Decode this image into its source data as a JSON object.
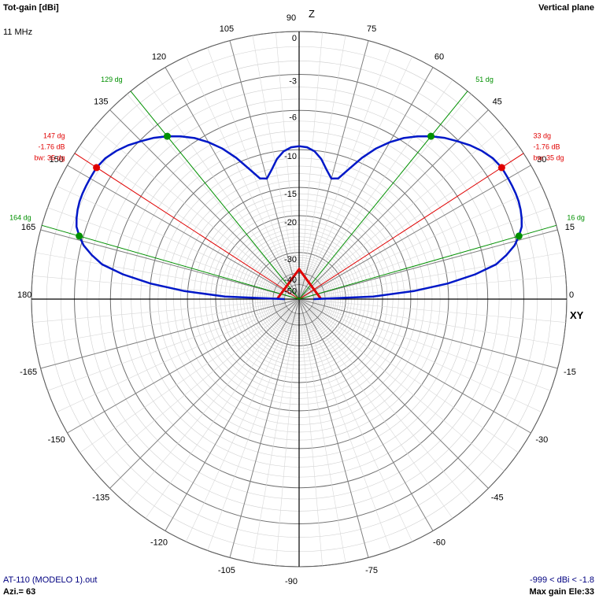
{
  "header": {
    "title": "Tot-gain [dBi]",
    "frequency": "11 MHz",
    "plane": "Vertical plane"
  },
  "footer": {
    "filename": "AT-110 (MODELO 1).out",
    "azimuth": "Azi.= 63",
    "range": "-999 < dBi < -1.8",
    "max_gain": "Max gain Ele:33"
  },
  "axes": {
    "z_label": "Z",
    "xy_label": "XY"
  },
  "colors": {
    "pattern": "#0018c8",
    "beamwidth": "#e00000",
    "takeoff": "#009000",
    "grid": "#808080",
    "antenna": "#e00000"
  },
  "chart_data": {
    "type": "polar",
    "angle_ticks": [
      "0",
      "15",
      "30",
      "45",
      "60",
      "75",
      "90",
      "105",
      "120",
      "135",
      "150",
      "165",
      "180",
      "-165",
      "-150",
      "-135",
      "-120",
      "-105",
      "-90",
      "-75",
      "-60",
      "-45",
      "-30",
      "-15"
    ],
    "angle_tick_values": [
      0,
      15,
      30,
      45,
      60,
      75,
      90,
      105,
      120,
      135,
      150,
      165,
      180,
      -165,
      -150,
      -135,
      -120,
      -105,
      -90,
      -75,
      -60,
      -45,
      -30,
      -15
    ],
    "radial_ticks": [
      "0",
      "-3",
      "-6",
      "-10",
      "-15",
      "-20",
      "-30",
      "-40",
      "-50"
    ],
    "radial_tick_values": [
      0,
      -3,
      -6,
      -10,
      -15,
      -20,
      -30,
      -40,
      -50
    ],
    "pattern": {
      "elevation_deg": [
        0,
        2,
        4,
        6,
        8,
        10,
        12,
        14,
        16,
        18,
        20,
        22,
        24,
        26,
        28,
        30,
        33,
        36,
        39,
        42,
        45,
        48,
        51,
        54,
        57,
        60,
        63,
        66,
        69,
        72,
        75,
        78,
        81,
        84,
        87,
        90
      ],
      "gain_dbi": [
        -50,
        -22,
        -14.5,
        -10,
        -7,
        -5,
        -4,
        -3.2,
        -2.7,
        -2.3,
        -2.1,
        -1.95,
        -1.85,
        -1.8,
        -1.78,
        -1.77,
        -1.76,
        -1.9,
        -2.2,
        -2.6,
        -3.1,
        -3.6,
        -4.2,
        -4.9,
        -5.7,
        -6.7,
        -7.9,
        -9.4,
        -11.2,
        -12.8,
        -13.1,
        -12.1,
        -10.9,
        -10.1,
        -9.7,
        -9.6
      ]
    },
    "beamwidth_lines": [
      {
        "angle": 33,
        "labels": [
          "33 dg",
          "-1.76 dB",
          "bw: 35 dg"
        ]
      },
      {
        "angle": 147,
        "labels": [
          "147 dg",
          "-1.76 dB",
          "bw: 35 dg"
        ]
      }
    ],
    "takeoff_lines": [
      {
        "angle": 16,
        "labels": [
          "16 dg"
        ]
      },
      {
        "angle": 51,
        "labels": [
          "51 dg"
        ]
      },
      {
        "angle": 129,
        "labels": [
          "129 dg"
        ]
      },
      {
        "angle": 164,
        "labels": [
          "164 dg"
        ]
      }
    ]
  }
}
